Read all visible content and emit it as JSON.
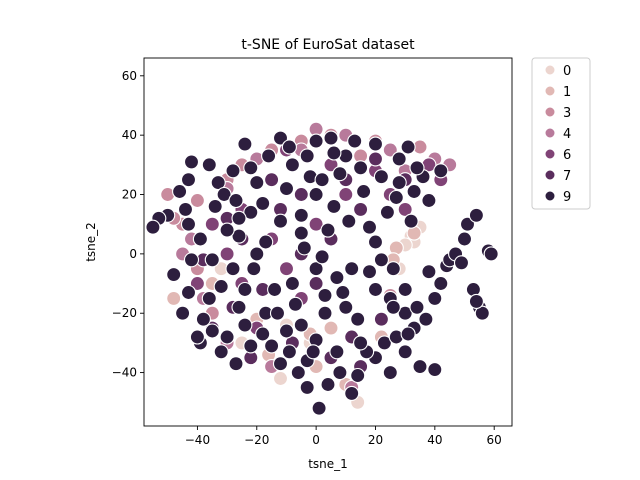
{
  "chart_data": {
    "type": "scatter",
    "title": "t-SNE of EuroSat dataset",
    "xlabel": "tsne_1",
    "ylabel": "tsne_2",
    "xlim": [
      -58,
      66
    ],
    "ylim": [
      -58,
      66
    ],
    "xticks": [
      -40,
      -20,
      0,
      20,
      40,
      60
    ],
    "yticks": [
      -40,
      -20,
      0,
      20,
      40,
      60
    ],
    "xtick_labels": [
      "−40",
      "−20",
      "0",
      "20",
      "40",
      "60"
    ],
    "ytick_labels": [
      "−40",
      "−20",
      "0",
      "20",
      "40",
      "60"
    ],
    "grid": false,
    "legend_position": "outside top-right",
    "marker_edge_color": "#ffffff",
    "series": [
      {
        "name": "0",
        "color": "#ecd5cf",
        "points": [
          [
            34,
            8
          ],
          [
            32,
            6
          ],
          [
            35,
            9
          ],
          [
            33,
            4
          ],
          [
            -10,
            -24
          ],
          [
            -2,
            -30
          ],
          [
            14,
            -50
          ],
          [
            30,
            3
          ],
          [
            -32,
            -5
          ],
          [
            -25,
            -30
          ],
          [
            28,
            -5
          ],
          [
            -12,
            -42
          ]
        ]
      },
      {
        "name": "1",
        "color": "#e1b8b4",
        "points": [
          [
            27,
            2
          ],
          [
            33,
            7
          ],
          [
            26,
            -2
          ],
          [
            -2,
            -27
          ],
          [
            5,
            -25
          ],
          [
            -20,
            -22
          ],
          [
            0,
            -38
          ],
          [
            10,
            -44
          ],
          [
            -48,
            -15
          ],
          [
            -16,
            -34
          ],
          [
            22,
            -28
          ],
          [
            -35,
            -10
          ]
        ]
      },
      {
        "name": "3",
        "color": "#c98b9d",
        "points": [
          [
            -25,
            30
          ],
          [
            -40,
            18
          ],
          [
            -45,
            10
          ],
          [
            -48,
            12
          ],
          [
            -50,
            20
          ],
          [
            -15,
            35
          ],
          [
            5,
            40
          ],
          [
            20,
            38
          ],
          [
            35,
            36
          ],
          [
            -35,
            -20
          ],
          [
            25,
            -14
          ],
          [
            -40,
            -5
          ],
          [
            -30,
            25
          ],
          [
            -5,
            38
          ],
          [
            15,
            33
          ]
        ]
      },
      {
        "name": "4",
        "color": "#b87a9b",
        "points": [
          [
            -20,
            32
          ],
          [
            0,
            42
          ],
          [
            10,
            40
          ],
          [
            25,
            35
          ],
          [
            40,
            32
          ],
          [
            45,
            30
          ],
          [
            -30,
            22
          ],
          [
            -42,
            5
          ],
          [
            -38,
            -15
          ],
          [
            -30,
            -30
          ],
          [
            -15,
            -38
          ],
          [
            12,
            -45
          ],
          [
            -5,
            35
          ],
          [
            30,
            28
          ],
          [
            -45,
            0
          ]
        ]
      },
      {
        "name": "6",
        "color": "#804376",
        "points": [
          [
            -10,
            35
          ],
          [
            5,
            30
          ],
          [
            20,
            28
          ],
          [
            38,
            30
          ],
          [
            42,
            25
          ],
          [
            -25,
            15
          ],
          [
            -35,
            10
          ],
          [
            -40,
            -10
          ],
          [
            -20,
            -25
          ],
          [
            -5,
            -15
          ],
          [
            -30,
            0
          ],
          [
            -15,
            5
          ],
          [
            0,
            10
          ],
          [
            10,
            20
          ],
          [
            25,
            20
          ],
          [
            30,
            15
          ],
          [
            -25,
            -10
          ],
          [
            -10,
            -5
          ]
        ]
      },
      {
        "name": "7",
        "color": "#5a2d5d",
        "points": [
          [
            -15,
            25
          ],
          [
            -5,
            20
          ],
          [
            10,
            25
          ],
          [
            20,
            32
          ],
          [
            30,
            25
          ],
          [
            -30,
            12
          ],
          [
            -38,
            -2
          ],
          [
            -35,
            -25
          ],
          [
            -22,
            -35
          ],
          [
            -8,
            -30
          ],
          [
            5,
            -35
          ],
          [
            15,
            -38
          ],
          [
            -18,
            -12
          ],
          [
            -5,
            0
          ],
          [
            5,
            5
          ],
          [
            15,
            15
          ],
          [
            -25,
            5
          ],
          [
            -12,
            15
          ],
          [
            -28,
            -18
          ],
          [
            0,
            -10
          ],
          [
            12,
            -28
          ],
          [
            22,
            -22
          ]
        ]
      },
      {
        "name": "9",
        "color": "#2d1e3e",
        "points": [
          [
            -42,
            31
          ],
          [
            -43,
            25
          ],
          [
            -46,
            21
          ],
          [
            -43,
            10
          ],
          [
            -50,
            13
          ],
          [
            -53,
            12
          ],
          [
            -55,
            9
          ],
          [
            -42,
            -2
          ],
          [
            -43,
            -13
          ],
          [
            -38,
            -22
          ],
          [
            -35,
            -26
          ],
          [
            -32,
            -33
          ],
          [
            -27,
            -37
          ],
          [
            -22,
            -31
          ],
          [
            -18,
            -27
          ],
          [
            -12,
            -37
          ],
          [
            -6,
            -40
          ],
          [
            -3,
            -45
          ],
          [
            1,
            -52
          ],
          [
            4,
            -44
          ],
          [
            8,
            -40
          ],
          [
            12,
            -47
          ],
          [
            14,
            -41
          ],
          [
            20,
            -35
          ],
          [
            23,
            -30
          ],
          [
            27,
            -28
          ],
          [
            30,
            -33
          ],
          [
            35,
            -38
          ],
          [
            33,
            -25
          ],
          [
            30,
            -20
          ],
          [
            25,
            -15
          ],
          [
            20,
            -12
          ],
          [
            18,
            -6
          ],
          [
            22,
            -2
          ],
          [
            26,
            -5
          ],
          [
            30,
            -12
          ],
          [
            34,
            -18
          ],
          [
            37,
            -22
          ],
          [
            38,
            -6
          ],
          [
            40,
            -15
          ],
          [
            42,
            -10
          ],
          [
            44,
            -4
          ],
          [
            45,
            -2
          ],
          [
            47,
            0
          ],
          [
            50,
            5
          ],
          [
            51,
            10
          ],
          [
            54,
            13
          ],
          [
            53,
            -12
          ],
          [
            55,
            -18
          ],
          [
            56,
            -20
          ],
          [
            54,
            -16
          ],
          [
            58,
            1
          ],
          [
            59,
            0
          ],
          [
            49,
            -3
          ],
          [
            40,
            -39
          ],
          [
            -33,
            24
          ],
          [
            -31,
            20
          ],
          [
            -27,
            18
          ],
          [
            -22,
            14
          ],
          [
            -26,
            6
          ],
          [
            -20,
            0
          ],
          [
            -28,
            -5
          ],
          [
            -24,
            -12
          ],
          [
            -17,
            -20
          ],
          [
            -10,
            -26
          ],
          [
            -5,
            -24
          ],
          [
            0,
            -29
          ],
          [
            3,
            -20
          ],
          [
            10,
            -18
          ],
          [
            14,
            -22
          ],
          [
            7,
            -8
          ],
          [
            12,
            -5
          ],
          [
            0,
            -5
          ],
          [
            -5,
            7
          ],
          [
            -12,
            11
          ],
          [
            -18,
            17
          ],
          [
            -10,
            22
          ],
          [
            -5,
            13
          ],
          [
            0,
            20
          ],
          [
            6,
            16
          ],
          [
            -2,
            26
          ],
          [
            -8,
            30
          ],
          [
            -3,
            33
          ],
          [
            0,
            38
          ],
          [
            5,
            39
          ],
          [
            10,
            33
          ],
          [
            15,
            29
          ],
          [
            22,
            26
          ],
          [
            28,
            24
          ],
          [
            33,
            21
          ],
          [
            36,
            26
          ],
          [
            31,
            36
          ],
          [
            20,
            37
          ],
          [
            13,
            38
          ],
          [
            6,
            34
          ],
          [
            -16,
            33
          ],
          [
            -22,
            29
          ],
          [
            -28,
            28
          ],
          [
            -12,
            39
          ],
          [
            -4,
            2
          ],
          [
            2,
            -1
          ],
          [
            9,
            -13
          ],
          [
            -14,
            -12
          ],
          [
            -21,
            -5
          ],
          [
            -32,
            -11
          ],
          [
            -36,
            -15
          ],
          [
            -39,
            -30
          ],
          [
            -30,
            -28
          ],
          [
            -24,
            -24
          ],
          [
            -15,
            -31
          ],
          [
            -9,
            -33
          ],
          [
            -3,
            -36
          ],
          [
            7,
            -33
          ],
          [
            17,
            -33
          ],
          [
            25,
            -40
          ],
          [
            31,
            -27
          ],
          [
            26,
            -18
          ],
          [
            -7,
            -17
          ],
          [
            3,
            -14
          ],
          [
            16,
            21
          ],
          [
            2,
            25
          ],
          [
            -17,
            4
          ],
          [
            -30,
            8
          ],
          [
            -35,
            -2
          ],
          [
            -39,
            5
          ],
          [
            -44,
            15
          ],
          [
            -48,
            -7
          ],
          [
            -45,
            -20
          ],
          [
            -40,
            -28
          ],
          [
            -26,
            -18
          ],
          [
            -13,
            -20
          ],
          [
            -8,
            -10
          ],
          [
            4,
            8
          ],
          [
            11,
            11
          ],
          [
            18,
            9
          ],
          [
            24,
            14
          ],
          [
            27,
            19
          ],
          [
            -20,
            24
          ],
          [
            -26,
            12
          ],
          [
            -34,
            16
          ],
          [
            -36,
            30
          ],
          [
            -24,
            37
          ],
          [
            -9,
            36
          ],
          [
            8,
            27
          ],
          [
            28,
            32
          ],
          [
            34,
            29
          ],
          [
            42,
            28
          ],
          [
            38,
            18
          ],
          [
            32,
            11
          ],
          [
            20,
            4
          ],
          [
            15,
            -30
          ],
          [
            -1,
            -33
          ]
        ]
      }
    ]
  }
}
